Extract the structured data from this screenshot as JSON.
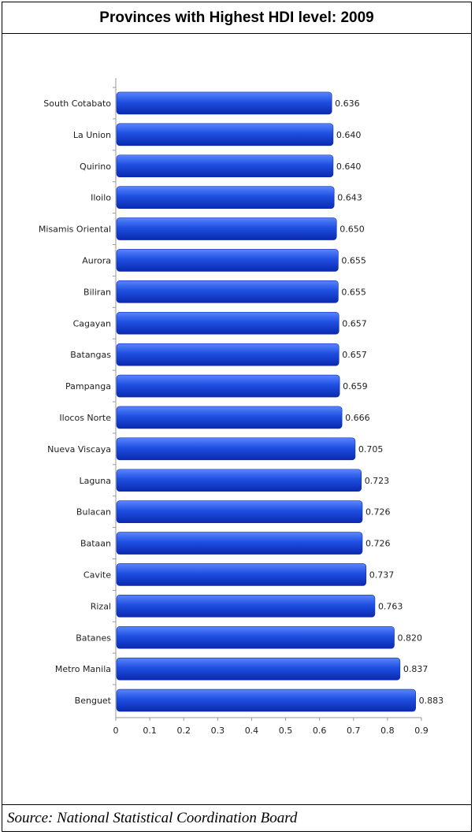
{
  "title": "Provinces with Highest HDI level: 2009",
  "source": "Source: National Statistical Coordination Board",
  "colors": {
    "bar": "#1f4fe0",
    "bar_dark": "#0a2ab0",
    "bar_light": "#5a86ff"
  },
  "chart_data": {
    "type": "bar",
    "orientation": "horizontal",
    "title": "Provinces with Highest HDI level: 2009",
    "xlabel": "",
    "ylabel": "",
    "xlim": [
      0,
      0.9
    ],
    "x_ticks": [
      "0",
      "0.1",
      "0.2",
      "0.3",
      "0.4",
      "0.5",
      "0.6",
      "0.7",
      "0.8",
      "0.9"
    ],
    "grid": false,
    "legend": "none",
    "categories": [
      "South Cotabato",
      "La Union",
      "Quirino",
      "Iloilo",
      "Misamis Oriental",
      "Aurora",
      "Biliran",
      "Cagayan",
      "Batangas",
      "Pampanga",
      "Ilocos Norte",
      "Nueva Viscaya",
      "Laguna",
      "Bulacan",
      "Bataan",
      "Cavite",
      "Rizal",
      "Batanes",
      "Metro Manila",
      "Benguet"
    ],
    "values": [
      0.636,
      0.64,
      0.64,
      0.643,
      0.65,
      0.655,
      0.655,
      0.657,
      0.657,
      0.659,
      0.666,
      0.705,
      0.723,
      0.726,
      0.726,
      0.737,
      0.763,
      0.82,
      0.837,
      0.883
    ],
    "value_labels": [
      "0.636",
      "0.640",
      "0.640",
      "0.643",
      "0.650",
      "0.655",
      "0.655",
      "0.657",
      "0.657",
      "0.659",
      "0.666",
      "0.705",
      "0.723",
      "0.726",
      "0.726",
      "0.737",
      "0.763",
      "0.820",
      "0.837",
      "0.883"
    ]
  }
}
